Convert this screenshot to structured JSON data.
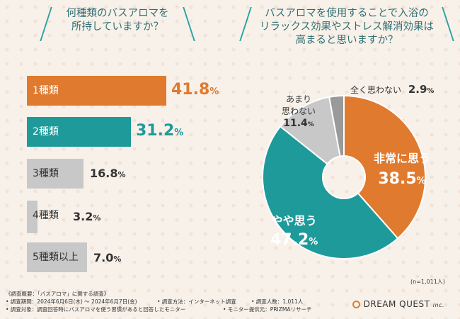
{
  "left_chart": {
    "title_line1": "何種類のバスアロマを",
    "title_line2": "所持していますか？",
    "bars": [
      {
        "label": "1種類",
        "value": "41.8",
        "unit": "%"
      },
      {
        "label": "2種類",
        "value": "31.2",
        "unit": "%"
      },
      {
        "label": "3種類",
        "value": "16.8",
        "unit": "%"
      },
      {
        "label": "4種類",
        "value": "3.2",
        "unit": "%"
      },
      {
        "label": "5種類以上",
        "value": "7.0",
        "unit": "%"
      }
    ]
  },
  "right_chart": {
    "title_line1": "バスアロマを使用することで入浴の",
    "title_line2": "リラックス効果やストレス解消効果は",
    "title_line3": "高まると思いますか？",
    "labels": {
      "very": "非常に思う",
      "somewhat": "やや思う",
      "not_much_1": "あまり",
      "not_much_2": "思わない",
      "not_at_all": "全く思わない"
    },
    "values": {
      "very": "38.5",
      "somewhat": "47.2",
      "not_much": "11.4",
      "not_at_all": "2.9"
    },
    "unit": "%",
    "n_note": "(n=1,011人)"
  },
  "chart_data": [
    {
      "type": "bar",
      "title": "何種類のバスアロマを所持していますか？",
      "categories": [
        "1種類",
        "2種類",
        "3種類",
        "4種類",
        "5種類以上"
      ],
      "values": [
        41.8,
        31.2,
        16.8,
        3.2,
        7.0
      ],
      "unit": "%",
      "colors": [
        "#e07a2e",
        "#1e9a9a",
        "#c8c8c8",
        "#c8c8c8",
        "#c8c8c8"
      ]
    },
    {
      "type": "pie",
      "title": "バスアロマを使用することで入浴のリラックス効果やストレス解消効果は高まると思いますか？",
      "categories": [
        "非常に思う",
        "やや思う",
        "あまり思わない",
        "全く思わない"
      ],
      "values": [
        38.5,
        47.2,
        11.4,
        2.9
      ],
      "unit": "%",
      "colors": [
        "#e07a2e",
        "#1e9a9a",
        "#c8c8c8",
        "#9a9a9a"
      ]
    }
  ],
  "footer": {
    "line1": "《調査概要：「バスアロマ」に関する調査》",
    "period": "• 調査期間：2024年6月6日(木) ～ 2024年6月7日(金)",
    "method": "• 調査方法：インターネット調査",
    "count": "• 調査人数：1,011人",
    "target": "• 調査対象：調査回答時にバスアロマを使う習慣があると回答したモニター",
    "provider": "• モニター提供元：PRIZMAリサーチ",
    "logo": "DREAM QUEST",
    "logo_suffix": "inc."
  }
}
